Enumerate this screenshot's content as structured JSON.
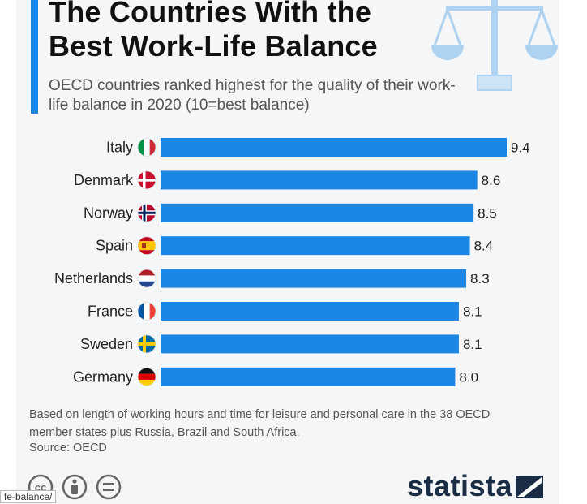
{
  "header": {
    "title": "The Countries With the Best Work-Life Balance",
    "subtitle": "OECD countries ranked highest for the quality of their work-life balance in 2020 (10=best balance)"
  },
  "chart_data": {
    "type": "bar",
    "orientation": "horizontal",
    "categories": [
      "Italy",
      "Denmark",
      "Norway",
      "Spain",
      "Netherlands",
      "France",
      "Sweden",
      "Germany"
    ],
    "values": [
      9.4,
      8.6,
      8.5,
      8.4,
      8.3,
      8.1,
      8.1,
      8.0
    ],
    "value_labels": [
      "9.4",
      "8.6",
      "8.5",
      "8.4",
      "8.3",
      "8.1",
      "8.1",
      "8.0"
    ],
    "xlim": [
      0,
      9.4
    ],
    "grid": false,
    "bar_color": "#1b86e3"
  },
  "footer": {
    "note": "Based on length of working hours and time for leisure and personal care in the 38 OECD member states plus Russia, Brazil and South Africa.",
    "source": "Source: OECD",
    "brand": "statista",
    "url_fragment": "fe-balance/"
  },
  "icons": {
    "header": "scales-of-justice-icon",
    "license": [
      "cc-icon",
      "attribution-icon",
      "no-derivatives-icon"
    ],
    "flags": [
      "italy-flag-icon",
      "denmark-flag-icon",
      "norway-flag-icon",
      "spain-flag-icon",
      "netherlands-flag-icon",
      "france-flag-icon",
      "sweden-flag-icon",
      "germany-flag-icon"
    ]
  },
  "colors": {
    "accent": "#1b86e3",
    "brand": "#1a2d45",
    "icon_light": "#aed2f2"
  }
}
